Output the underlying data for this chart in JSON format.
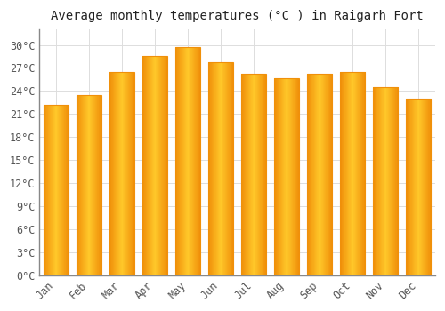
{
  "title": "Average monthly temperatures (°C ) in Raigarh Fort",
  "months": [
    "Jan",
    "Feb",
    "Mar",
    "Apr",
    "May",
    "Jun",
    "Jul",
    "Aug",
    "Sep",
    "Oct",
    "Nov",
    "Dec"
  ],
  "values": [
    22.2,
    23.5,
    26.5,
    28.5,
    29.7,
    27.8,
    26.2,
    25.7,
    26.2,
    26.5,
    24.5,
    23.0
  ],
  "bar_color_center": "#FFC82A",
  "bar_color_edge": "#F0900A",
  "background_color": "#FFFFFF",
  "grid_color": "#DDDDDD",
  "text_color": "#555555",
  "spine_color": "#888888",
  "ylim": [
    0,
    32
  ],
  "yticks": [
    0,
    3,
    6,
    9,
    12,
    15,
    18,
    21,
    24,
    27,
    30
  ],
  "title_fontsize": 10,
  "tick_fontsize": 8.5
}
